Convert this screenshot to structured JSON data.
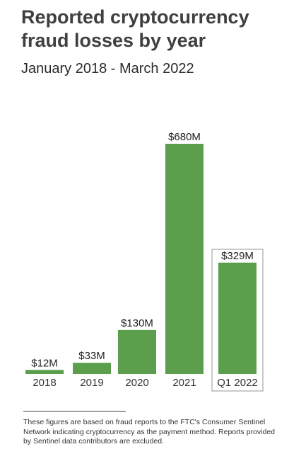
{
  "chart_data": {
    "type": "bar",
    "title": "Reported cryptocurrency fraud losses by year",
    "subtitle": "January 2018 - March 2022",
    "categories": [
      "2018",
      "2019",
      "2020",
      "2021",
      "Q1 2022"
    ],
    "values": [
      12,
      33,
      130,
      680,
      329
    ],
    "value_labels": [
      "$12M",
      "$33M",
      "$130M",
      "$680M",
      "$329M"
    ],
    "unit": "$M",
    "highlighted_category": "Q1 2022",
    "grid": false,
    "bar_color": "#5b9f4c",
    "highlight_border_color": "#a6a6a6"
  },
  "footnote": "These figures are based on fraud reports to the FTC's Consumer Sentinel Network indicating cryptocurrency as the payment method. Reports provided by Sentinel data contributors are excluded."
}
